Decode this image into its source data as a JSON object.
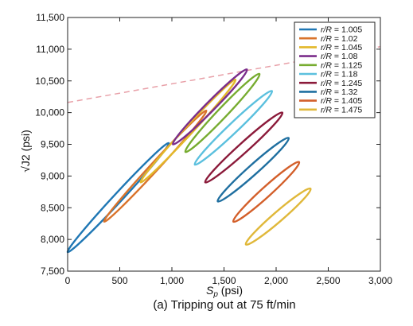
{
  "chart_data": {
    "type": "line",
    "caption": "(a) Tripping out at 75 ft/min",
    "xlabel": "Sp (psi)",
    "xlabel_main": "S",
    "xlabel_sub": "p",
    "xlabel_unit": " (psi)",
    "ylabel": "√J2 (psi)",
    "ylabel_main": "√J2",
    "ylabel_unit": " (psi)",
    "xlim": [
      0,
      3000
    ],
    "ylim": [
      7500,
      11500
    ],
    "xticks": [
      0,
      500,
      1000,
      1500,
      2000,
      2500,
      3000
    ],
    "xtick_labels": [
      "0",
      "500",
      "1,000",
      "1,500",
      "2,000",
      "2,500",
      "3,000"
    ],
    "yticks": [
      7500,
      8000,
      8500,
      9000,
      9500,
      10000,
      10500,
      11000,
      11500
    ],
    "ytick_labels": [
      "7,500",
      "8,000",
      "8,500",
      "9,000",
      "9,500",
      "10,000",
      "10,500",
      "11,000",
      "11,500"
    ],
    "legend_position": "top-right",
    "grid": false,
    "reference_line": {
      "style": "dashed",
      "color": "#e8a0a8",
      "points": [
        [
          0,
          10160
        ],
        [
          3000,
          11040
        ]
      ]
    },
    "series": [
      {
        "name": "r/R = 1.005",
        "legend_label": "= 1.005",
        "color": "#1f77b4",
        "loop": {
          "start": [
            0,
            7800
          ],
          "end": [
            970,
            9520
          ],
          "width": 45
        }
      },
      {
        "name": "r/R = 1.02",
        "legend_label": "= 1.02",
        "color": "#d9732b",
        "loop": {
          "start": [
            350,
            8280
          ],
          "end": [
            1330,
            10030
          ],
          "width": 40
        }
      },
      {
        "name": "r/R = 1.045",
        "legend_label": "= 1.045",
        "color": "#e3b82a",
        "loop": {
          "start": [
            700,
            8900
          ],
          "end": [
            1610,
            10520
          ],
          "width": 40
        }
      },
      {
        "name": "r/R = 1.08",
        "legend_label": "= 1.08",
        "color": "#7b2d8b",
        "loop": {
          "start": [
            1010,
            9500
          ],
          "end": [
            1720,
            10680
          ],
          "width": 50
        }
      },
      {
        "name": "r/R = 1.125",
        "legend_label": "= 1.125",
        "color": "#77ac30",
        "loop": {
          "start": [
            1130,
            9380
          ],
          "end": [
            1840,
            10610
          ],
          "width": 55
        }
      },
      {
        "name": "r/R = 1.18",
        "legend_label": "= 1.18",
        "color": "#5bc0de",
        "loop": {
          "start": [
            1220,
            9180
          ],
          "end": [
            1960,
            10340
          ],
          "width": 55
        }
      },
      {
        "name": "r/R = 1.245",
        "legend_label": "= 1.245",
        "color": "#8b1a3a",
        "loop": {
          "start": [
            1320,
            8900
          ],
          "end": [
            2060,
            10000
          ],
          "width": 55
        }
      },
      {
        "name": "r/R = 1.32",
        "legend_label": "= 1.32",
        "color": "#1f6fa0",
        "loop": {
          "start": [
            1440,
            8600
          ],
          "end": [
            2120,
            9600
          ],
          "width": 55
        }
      },
      {
        "name": "r/R = 1.405",
        "legend_label": "= 1.405",
        "color": "#d35f2a",
        "loop": {
          "start": [
            1590,
            8280
          ],
          "end": [
            2220,
            9220
          ],
          "width": 55
        }
      },
      {
        "name": "r/R = 1.475",
        "legend_label": "= 1.475",
        "color": "#e0b83a",
        "loop": {
          "start": [
            1710,
            7920
          ],
          "end": [
            2330,
            8800
          ],
          "width": 55
        }
      }
    ]
  }
}
